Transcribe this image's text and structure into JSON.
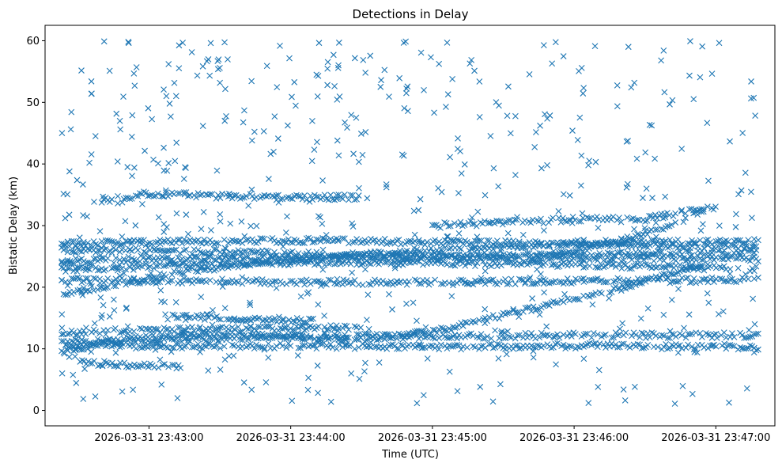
{
  "chart_data": {
    "type": "scatter",
    "title": "Detections in Delay",
    "xlabel": "Time (UTC)",
    "ylabel": "Bistatic Delay (km)",
    "marker": "x",
    "color": "#1f77b4",
    "grid": false,
    "legend": "none",
    "x_start": "2026-03-31 23:42:23",
    "x_end": "2026-03-31 23:47:18",
    "xlim": [
      "2026-03-31 23:42:16",
      "2026-03-31 23:47:25"
    ],
    "ylim": [
      -2.5,
      62.5
    ],
    "xticks": [
      "2026-03-31 23:43:00",
      "2026-03-31 23:44:00",
      "2026-03-31 23:45:00",
      "2026-03-31 23:46:00",
      "2026-03-31 23:47:00"
    ],
    "yticks": [
      0,
      10,
      20,
      30,
      40,
      50,
      60
    ],
    "tracks": [
      {
        "t": [
          "2026-03-31 23:42:23",
          "2026-03-31 23:43:00",
          "2026-03-31 23:44:00",
          "2026-03-31 23:45:00",
          "2026-03-31 23:46:00",
          "2026-03-31 23:47:18"
        ],
        "y": [
          27.0,
          27.3,
          27.6,
          27.3,
          27.0,
          26.6
        ]
      },
      {
        "t": [
          "2026-03-31 23:42:23",
          "2026-03-31 23:43:00",
          "2026-03-31 23:44:00",
          "2026-03-31 23:45:00",
          "2026-03-31 23:46:00",
          "2026-03-31 23:47:18"
        ],
        "y": [
          26.0,
          26.0,
          25.4,
          25.0,
          24.8,
          24.6
        ]
      },
      {
        "t": [
          "2026-03-31 23:42:23",
          "2026-03-31 23:43:00",
          "2026-03-31 23:44:00",
          "2026-03-31 23:45:00",
          "2026-03-31 23:46:00",
          "2026-03-31 23:47:18"
        ],
        "y": [
          24.2,
          24.5,
          24.8,
          24.8,
          25.2,
          25.8
        ]
      },
      {
        "t": [
          "2026-03-31 23:42:23",
          "2026-03-31 23:43:00",
          "2026-03-31 23:44:00",
          "2026-03-31 23:45:00",
          "2026-03-31 23:46:00",
          "2026-03-31 23:47:18"
        ],
        "y": [
          22.8,
          23.5,
          24.0,
          24.0,
          23.6,
          23.0
        ]
      },
      {
        "t": [
          "2026-03-31 23:42:23",
          "2026-03-31 23:42:45",
          "2026-03-31 23:43:15",
          "2026-03-31 23:43:45",
          "2026-03-31 23:44:30",
          "2026-03-31 23:45:00",
          "2026-03-31 23:46:00",
          "2026-03-31 23:47:18"
        ],
        "y": [
          18.8,
          20.5,
          22.5,
          24.0,
          25.2,
          26.0,
          27.2,
          27.4
        ]
      },
      {
        "t": [
          "2026-03-31 23:42:23",
          "2026-03-31 23:43:00",
          "2026-03-31 23:43:20",
          "2026-03-31 23:44:00",
          "2026-03-31 23:45:00",
          "2026-03-31 23:46:00",
          "2026-03-31 23:47:18"
        ],
        "y": [
          21.2,
          21.0,
          21.0,
          20.8,
          20.8,
          21.0,
          21.2
        ]
      },
      {
        "t": [
          "2026-03-31 23:42:23",
          "2026-03-31 23:43:00",
          "2026-03-31 23:43:30",
          "2026-03-31 23:44:00",
          "2026-03-31 23:44:30"
        ],
        "y": [
          12.5,
          13.0,
          13.2,
          13.2,
          13.5
        ]
      },
      {
        "t": [
          "2026-03-31 23:42:23",
          "2026-03-31 23:43:00",
          "2026-03-31 23:44:00",
          "2026-03-31 23:45:00",
          "2026-03-31 23:46:00",
          "2026-03-31 23:47:18"
        ],
        "y": [
          11.0,
          11.5,
          12.0,
          12.0,
          12.2,
          12.2
        ]
      },
      {
        "t": [
          "2026-03-31 23:42:23",
          "2026-03-31 23:43:00",
          "2026-03-31 23:44:00",
          "2026-03-31 23:45:00",
          "2026-03-31 23:46:00",
          "2026-03-31 23:47:18"
        ],
        "y": [
          10.2,
          10.5,
          10.5,
          10.3,
          10.5,
          10.2
        ]
      },
      {
        "t": [
          "2026-03-31 23:42:23",
          "2026-03-31 23:43:00",
          "2026-03-31 23:43:30",
          "2026-03-31 23:44:00",
          "2026-03-31 23:44:30",
          "2026-03-31 23:45:00",
          "2026-03-31 23:45:30",
          "2026-03-31 23:46:00",
          "2026-03-31 23:46:30",
          "2026-03-31 23:46:55"
        ],
        "y": [
          9.8,
          12.0,
          12.5,
          11.8,
          11.5,
          12.8,
          15.5,
          18.0,
          21.0,
          23.5
        ]
      },
      {
        "t": [
          "2026-03-31 23:42:40",
          "2026-03-31 23:43:00",
          "2026-03-31 23:43:30",
          "2026-03-31 23:44:00",
          "2026-03-31 23:44:30"
        ],
        "y": [
          34.0,
          35.2,
          34.8,
          34.5,
          34.6
        ]
      },
      {
        "t": [
          "2026-03-31 23:45:00",
          "2026-03-31 23:45:30",
          "2026-03-31 23:46:00",
          "2026-03-31 23:46:30",
          "2026-03-31 23:46:55"
        ],
        "y": [
          30.0,
          30.5,
          31.0,
          31.0,
          33.0
        ]
      },
      {
        "t": [
          "2026-03-31 23:45:40",
          "2026-03-31 23:46:00",
          "2026-03-31 23:46:20",
          "2026-03-31 23:46:40",
          "2026-03-31 23:47:00"
        ],
        "y": [
          24.5,
          25.8,
          27.5,
          30.0,
          33.2
        ]
      },
      {
        "t": [
          "2026-03-31 23:43:10",
          "2026-03-31 23:43:30",
          "2026-03-31 23:43:50",
          "2026-03-31 23:44:10"
        ],
        "y": [
          15.5,
          15.0,
          14.8,
          14.6
        ]
      },
      {
        "t": [
          "2026-03-31 23:42:30",
          "2026-03-31 23:42:45",
          "2026-03-31 23:43:00",
          "2026-03-31 23:43:15"
        ],
        "y": [
          7.8,
          7.5,
          7.2,
          7.0
        ]
      }
    ]
  }
}
